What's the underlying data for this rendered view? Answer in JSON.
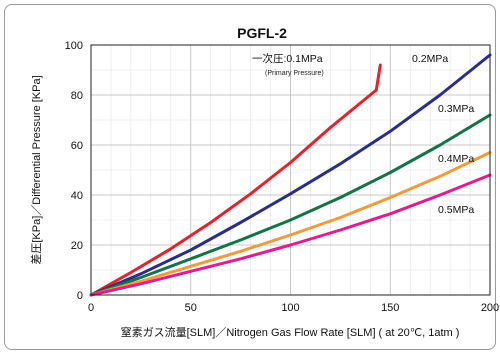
{
  "chart_data": {
    "type": "line",
    "title": "PGFL-2",
    "xlabel": "窒素ガス流量[SLM]／Nitrogen Gas Flow Rate [SLM] ( at 20℃, 1atm )",
    "ylabel": "差圧[KPa]／Differential Pressure [KPa]",
    "xlim": [
      0,
      200
    ],
    "ylim": [
      0,
      100
    ],
    "x_ticks": [
      "0",
      "50",
      "100",
      "150",
      "200"
    ],
    "y_ticks": [
      "0",
      "20",
      "40",
      "60",
      "80",
      "100"
    ],
    "grid": true,
    "legend": "none",
    "annotations": [
      "一次圧:0.1MPa",
      "(Primary Pressure)"
    ],
    "series": [
      {
        "name": "0.1MPa",
        "label": "一次圧:0.1MPa",
        "color": "#e8202a",
        "points": [
          [
            0,
            0
          ],
          [
            20,
            9
          ],
          [
            40,
            18.5
          ],
          [
            60,
            29
          ],
          [
            80,
            40.5
          ],
          [
            100,
            53
          ],
          [
            120,
            67
          ],
          [
            143,
            82
          ],
          [
            145,
            92
          ]
        ]
      },
      {
        "name": "0.2MPa",
        "label": "0.2MPa",
        "color": "#2b2d8c",
        "points": [
          [
            0,
            0
          ],
          [
            25,
            8.5
          ],
          [
            50,
            18
          ],
          [
            75,
            29
          ],
          [
            100,
            40.5
          ],
          [
            125,
            52.5
          ],
          [
            150,
            65.5
          ],
          [
            175,
            80
          ],
          [
            200,
            96
          ]
        ]
      },
      {
        "name": "0.3MPa",
        "label": "0.3MPa",
        "color": "#13744a",
        "points": [
          [
            0,
            0
          ],
          [
            25,
            7
          ],
          [
            50,
            14.5
          ],
          [
            75,
            22
          ],
          [
            100,
            30
          ],
          [
            125,
            39
          ],
          [
            150,
            49
          ],
          [
            175,
            60
          ],
          [
            200,
            72
          ]
        ]
      },
      {
        "name": "0.4MPa",
        "label": "0.4MPa",
        "color": "#f39a3a",
        "points": [
          [
            0,
            0
          ],
          [
            25,
            5.5
          ],
          [
            50,
            11.5
          ],
          [
            75,
            17.5
          ],
          [
            100,
            24
          ],
          [
            125,
            31
          ],
          [
            150,
            39
          ],
          [
            175,
            47.5
          ],
          [
            200,
            57
          ]
        ]
      },
      {
        "name": "0.5MPa",
        "label": "0.5MPa",
        "color": "#e61b8b",
        "points": [
          [
            0,
            0
          ],
          [
            25,
            4.5
          ],
          [
            50,
            9.5
          ],
          [
            75,
            14.5
          ],
          [
            100,
            20
          ],
          [
            125,
            26
          ],
          [
            150,
            32.5
          ],
          [
            175,
            40
          ],
          [
            200,
            48
          ]
        ]
      }
    ]
  }
}
